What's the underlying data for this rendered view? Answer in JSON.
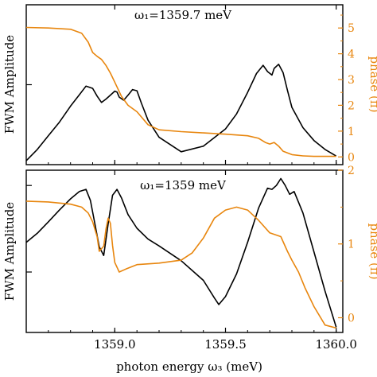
{
  "colors": {
    "amplitude": "#000000",
    "phase": "#e8860e",
    "frame": "#000000",
    "background": "#ffffff"
  },
  "xlabel": "photon energy ω₃ (meV)",
  "chart_data": [
    {
      "type": "line",
      "title": "ω₁=1359.7 meV",
      "ylabel_left": "FWM Amplitude",
      "ylabel_right": "phase (π)",
      "yscale_left": "log",
      "xlim": [
        1358.6,
        1360.03
      ],
      "ylim_left": [
        1,
        100
      ],
      "ylim_right": [
        -0.3,
        5.9
      ],
      "left_ticks": [
        10
      ],
      "right_ticks": [
        0,
        1,
        2,
        3,
        4,
        5
      ],
      "xticks": [
        1359.0,
        1359.5,
        1360.0
      ],
      "show_xticklabels": false,
      "series": [
        {
          "axis": "left",
          "color": "#000000",
          "x": [
            1358.6,
            1358.65,
            1358.7,
            1358.75,
            1358.8,
            1358.84,
            1358.87,
            1358.9,
            1358.92,
            1358.94,
            1358.96,
            1358.98,
            1359.0,
            1359.01,
            1359.02,
            1359.04,
            1359.06,
            1359.08,
            1359.1,
            1359.12,
            1359.15,
            1359.2,
            1359.3,
            1359.4,
            1359.5,
            1359.55,
            1359.6,
            1359.64,
            1359.67,
            1359.69,
            1359.71,
            1359.72,
            1359.74,
            1359.76,
            1359.78,
            1359.8,
            1359.85,
            1359.9,
            1359.95,
            1360.0
          ],
          "y": [
            1.12,
            1.55,
            2.3,
            3.4,
            5.4,
            7.5,
            9.6,
            9.0,
            7.2,
            6.0,
            6.6,
            7.4,
            8.3,
            8.1,
            7.0,
            6.4,
            7.4,
            8.7,
            8.4,
            5.9,
            3.6,
            2.2,
            1.45,
            1.7,
            2.8,
            4.3,
            8.0,
            13.8,
            17.5,
            14.6,
            13.2,
            16.0,
            18.0,
            14.2,
            8.5,
            5.2,
            2.9,
            2.0,
            1.55,
            1.28
          ]
        },
        {
          "axis": "right",
          "color": "#e8860e",
          "x": [
            1358.6,
            1358.7,
            1358.8,
            1358.85,
            1358.88,
            1358.9,
            1358.92,
            1358.94,
            1358.96,
            1358.98,
            1359.0,
            1359.03,
            1359.06,
            1359.1,
            1359.15,
            1359.2,
            1359.3,
            1359.4,
            1359.5,
            1359.6,
            1359.65,
            1359.68,
            1359.7,
            1359.72,
            1359.74,
            1359.76,
            1359.8,
            1359.85,
            1359.9,
            1360.0
          ],
          "y": [
            5.02,
            5.0,
            4.95,
            4.8,
            4.45,
            4.05,
            3.9,
            3.78,
            3.55,
            3.25,
            2.9,
            2.35,
            2.0,
            1.75,
            1.25,
            1.05,
            0.98,
            0.93,
            0.88,
            0.82,
            0.72,
            0.56,
            0.5,
            0.56,
            0.42,
            0.22,
            0.09,
            0.04,
            0.02,
            0.02
          ]
        }
      ]
    },
    {
      "type": "line",
      "title": "ω₁=1359 meV",
      "ylabel_left": "FWM Amplitude",
      "ylabel_right": "phase (π)",
      "yscale_left": "log",
      "xlim": [
        1358.6,
        1360.03
      ],
      "ylim_left": [
        0.2,
        15
      ],
      "ylim_right": [
        -0.2,
        2.0
      ],
      "left_ticks": [
        1,
        10
      ],
      "right_ticks": [
        0,
        1,
        2
      ],
      "xticks": [
        1359.0,
        1359.5,
        1360.0
      ],
      "xticklabels": [
        "1359.0",
        "1359.5",
        "1360.0"
      ],
      "series": [
        {
          "axis": "left",
          "color": "#000000",
          "x": [
            1358.6,
            1358.65,
            1358.7,
            1358.75,
            1358.8,
            1358.84,
            1358.87,
            1358.89,
            1358.91,
            1358.93,
            1358.95,
            1358.97,
            1358.99,
            1359.01,
            1359.03,
            1359.06,
            1359.1,
            1359.15,
            1359.2,
            1359.3,
            1359.4,
            1359.45,
            1359.47,
            1359.5,
            1359.55,
            1359.6,
            1359.65,
            1359.69,
            1359.71,
            1359.73,
            1359.75,
            1359.77,
            1359.79,
            1359.81,
            1359.85,
            1359.9,
            1359.95,
            1360.0
          ],
          "y": [
            2.2,
            2.8,
            3.8,
            5.2,
            7.0,
            8.5,
            9.0,
            6.7,
            3.6,
            1.95,
            1.55,
            3.6,
            7.7,
            9.0,
            7.2,
            4.6,
            3.2,
            2.4,
            2.0,
            1.35,
            0.8,
            0.5,
            0.42,
            0.52,
            0.95,
            2.2,
            5.5,
            9.3,
            9.0,
            10.0,
            12.0,
            10.0,
            7.9,
            8.5,
            4.8,
            1.7,
            0.6,
            0.23
          ]
        },
        {
          "axis": "right",
          "color": "#e8860e",
          "x": [
            1358.6,
            1358.7,
            1358.8,
            1358.85,
            1358.88,
            1358.9,
            1358.92,
            1358.93,
            1358.95,
            1358.96,
            1358.97,
            1358.98,
            1358.99,
            1359.0,
            1359.02,
            1359.05,
            1359.1,
            1359.2,
            1359.3,
            1359.35,
            1359.4,
            1359.45,
            1359.5,
            1359.55,
            1359.6,
            1359.65,
            1359.7,
            1359.75,
            1359.78,
            1359.8,
            1359.83,
            1359.86,
            1359.9,
            1359.95,
            1360.0
          ],
          "y": [
            1.58,
            1.57,
            1.54,
            1.5,
            1.42,
            1.3,
            1.1,
            0.9,
            0.97,
            1.2,
            1.35,
            1.28,
            0.98,
            0.75,
            0.62,
            0.66,
            0.72,
            0.74,
            0.78,
            0.88,
            1.08,
            1.35,
            1.46,
            1.5,
            1.46,
            1.32,
            1.15,
            1.1,
            0.9,
            0.78,
            0.62,
            0.4,
            0.15,
            -0.1,
            -0.14
          ]
        }
      ]
    }
  ]
}
